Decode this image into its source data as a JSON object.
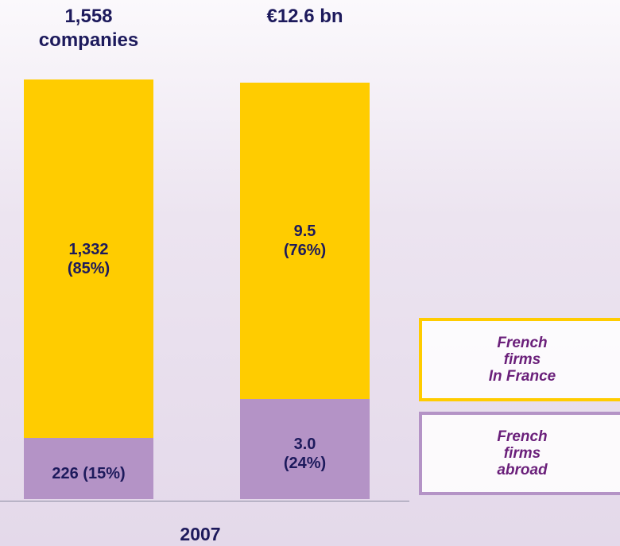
{
  "chart_data": {
    "type": "stacked-bar",
    "x_label": "2007",
    "totals": [
      {
        "value": 1558,
        "label": "1,558\ncompanies"
      },
      {
        "value": 12.6,
        "label": "€12.6 bn"
      }
    ],
    "series": [
      {
        "name": "French\nfirms\nabroad",
        "color": "#b493c6",
        "values": [
          226,
          3.0
        ],
        "value_labels": [
          "226 (15%)",
          "3.0\n(24%)"
        ]
      },
      {
        "name": "French\nfirms\nIn France",
        "color": "#ffcc00",
        "values": [
          1332,
          9.5
        ],
        "value_labels": [
          "1,332\n(85%)",
          "9.5\n(76%)"
        ]
      }
    ]
  }
}
